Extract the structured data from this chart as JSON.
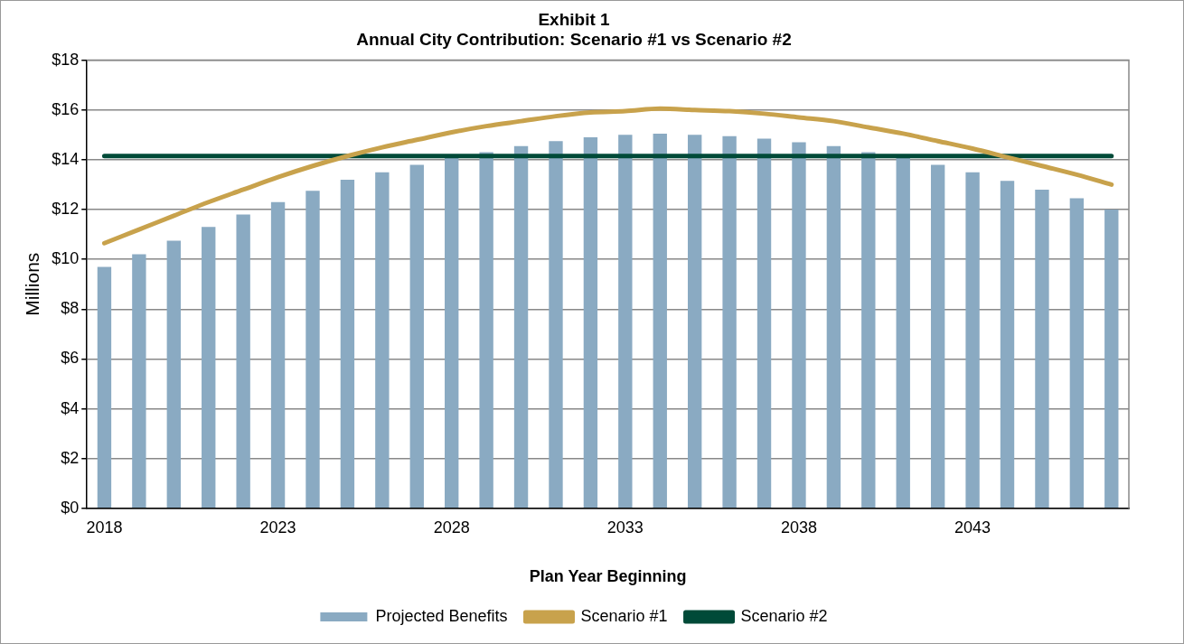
{
  "chart_data": {
    "type": "bar",
    "title": [
      "Exhibit 1",
      "Annual City Contribution: Scenario #1 vs Scenario #2"
    ],
    "xlabel": "Plan Year Beginning",
    "ylabel": "Millions",
    "categories": [
      "2018",
      null,
      null,
      null,
      null,
      "2023",
      null,
      null,
      null,
      null,
      "2028",
      null,
      null,
      null,
      null,
      "2033",
      null,
      null,
      null,
      null,
      "2038",
      null,
      null,
      null,
      null,
      "2043",
      null,
      null,
      null,
      null
    ],
    "series": [
      {
        "name": "Projected Benefits",
        "color": "#8aaac2",
        "values": [
          9.7,
          10.2,
          10.75,
          11.3,
          11.8,
          12.3,
          12.75,
          13.2,
          13.5,
          13.8,
          14.15,
          14.3,
          14.55,
          14.75,
          14.9,
          15.0,
          15.05,
          15.0,
          14.95,
          14.85,
          14.7,
          14.55,
          14.3,
          14.1,
          13.8,
          13.5,
          13.15,
          12.8,
          12.45,
          12.0
        ]
      },
      {
        "name": "Scenario #1",
        "type": "line",
        "color": "#c8a24c",
        "values": [
          10.65,
          11.2,
          11.75,
          12.3,
          12.8,
          13.3,
          13.75,
          14.15,
          14.5,
          14.8,
          15.1,
          15.35,
          15.55,
          15.75,
          15.9,
          15.95,
          16.05,
          16.0,
          15.95,
          15.85,
          15.7,
          15.55,
          15.3,
          15.05,
          14.75,
          14.45,
          14.1,
          13.75,
          13.4,
          13.0
        ]
      },
      {
        "name": "Scenario #2",
        "type": "line",
        "color": "#004a38",
        "values": [
          14.15,
          14.15,
          14.15,
          14.15,
          14.15,
          14.15,
          14.15,
          14.15,
          14.15,
          14.15,
          14.15,
          14.15,
          14.15,
          14.15,
          14.15,
          14.15,
          14.15,
          14.15,
          14.15,
          14.15,
          14.15,
          14.15,
          14.15,
          14.15,
          14.15,
          14.15,
          14.15,
          14.15,
          14.15,
          14.15
        ]
      }
    ],
    "ylim": [
      0,
      18
    ],
    "yticks": [
      {
        "value": 0,
        "label": "$0"
      },
      {
        "value": 2,
        "label": "$2"
      },
      {
        "value": 4,
        "label": "$4"
      },
      {
        "value": 6,
        "label": "$6"
      },
      {
        "value": 8,
        "label": "$8"
      },
      {
        "value": 10,
        "label": "$10"
      },
      {
        "value": 12,
        "label": "$12"
      },
      {
        "value": 14,
        "label": "$14"
      },
      {
        "value": 16,
        "label": "$16"
      },
      {
        "value": 18,
        "label": "$18"
      }
    ],
    "grid": "y",
    "legend": "bottom",
    "marker": "none",
    "line_style": "solid"
  }
}
